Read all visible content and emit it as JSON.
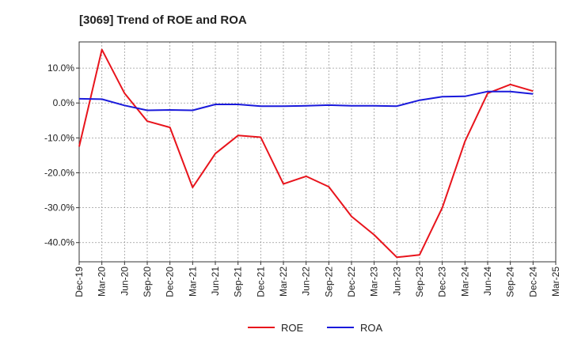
{
  "chart_data": {
    "type": "line",
    "title": "[3069]  Trend of ROE and ROA",
    "xlabel": "",
    "ylabel": "",
    "x": [
      "Dec-19",
      "Mar-20",
      "Jun-20",
      "Sep-20",
      "Dec-20",
      "Mar-21",
      "Jun-21",
      "Sep-21",
      "Dec-21",
      "Mar-22",
      "Jun-22",
      "Sep-22",
      "Dec-22",
      "Mar-23",
      "Jun-23",
      "Sep-23",
      "Dec-23",
      "Mar-24",
      "Jun-24",
      "Sep-24",
      "Dec-24",
      "Mar-25"
    ],
    "ylim": [
      -45.5,
      17.5
    ],
    "yticks": [
      10,
      0,
      -10,
      -20,
      -30,
      -40
    ],
    "ytick_labels": [
      "10.0%",
      "0.0%",
      "-10.0%",
      "-20.0%",
      "-30.0%",
      "-40.0%"
    ],
    "grid": true,
    "legend_position": "bottom-center",
    "series": [
      {
        "name": "ROE",
        "color": "#e8141c",
        "values": [
          -12.5,
          15.3,
          2.8,
          -5.2,
          -7.0,
          -24.2,
          -14.5,
          -9.3,
          -9.8,
          -23.2,
          -21.0,
          -24.0,
          -32.5,
          -37.8,
          -44.2,
          -43.5,
          -30.0,
          -11.0,
          2.8,
          5.3,
          3.4,
          null
        ]
      },
      {
        "name": "ROA",
        "color": "#1a1adb",
        "values": [
          1.2,
          1.1,
          -0.7,
          -2.1,
          -2.0,
          -2.1,
          -0.4,
          -0.4,
          -0.9,
          -0.9,
          -0.8,
          -0.6,
          -0.8,
          -0.8,
          -0.9,
          0.8,
          1.8,
          1.9,
          3.3,
          3.3,
          2.6,
          null
        ]
      }
    ]
  }
}
